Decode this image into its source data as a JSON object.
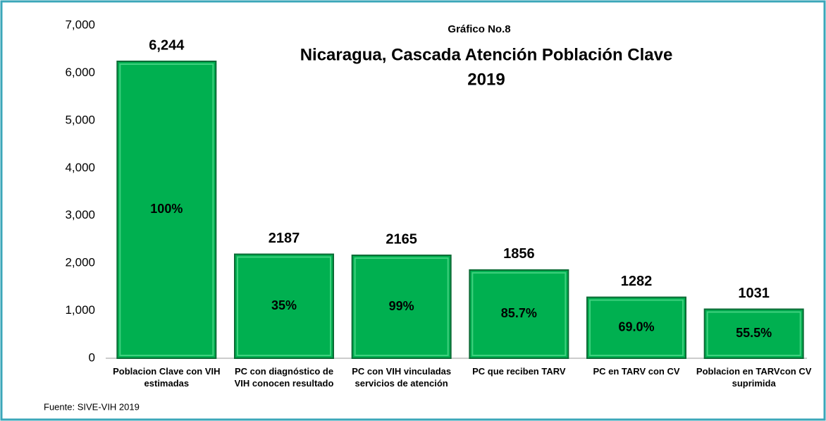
{
  "chart_data": {
    "type": "bar",
    "chart_number": "Gráfico No.8",
    "title": "Nicaragua, Cascada Atención Población Clave",
    "subtitle": "2019",
    "categories": [
      "Poblacion Clave con VIH estimadas",
      "PC con diagnóstico de VIH conocen resultado",
      "PC con VIH vinculadas servicios de atención",
      "PC que reciben TARV",
      "PC en TARV con CV",
      "Poblacion en TARVcon CV suprimida"
    ],
    "values": [
      6244,
      2187,
      2165,
      1856,
      1282,
      1031
    ],
    "value_labels": [
      "6,244",
      "2187",
      "2165",
      "1856",
      "1282",
      "1031"
    ],
    "annotations": [
      "100%",
      "35%",
      "99%",
      "85.7%",
      "69.0%",
      "55.5%"
    ],
    "color": "#00b050",
    "ylim": [
      0,
      7000
    ],
    "yticks": [
      0,
      {
        "value": 1000,
        "label": "1,000"
      },
      {
        "value": 2000,
        "label": "2,000"
      },
      {
        "value": 3000,
        "label": "3,000"
      },
      {
        "value": 4000,
        "label": "4,000"
      },
      {
        "value": 5000,
        "label": "5,000"
      },
      {
        "value": 6000,
        "label": "6,000"
      },
      {
        "value": 7000,
        "label": "7,000"
      }
    ],
    "grid": false,
    "source": "Fuente: SIVE-VIH 2019"
  }
}
